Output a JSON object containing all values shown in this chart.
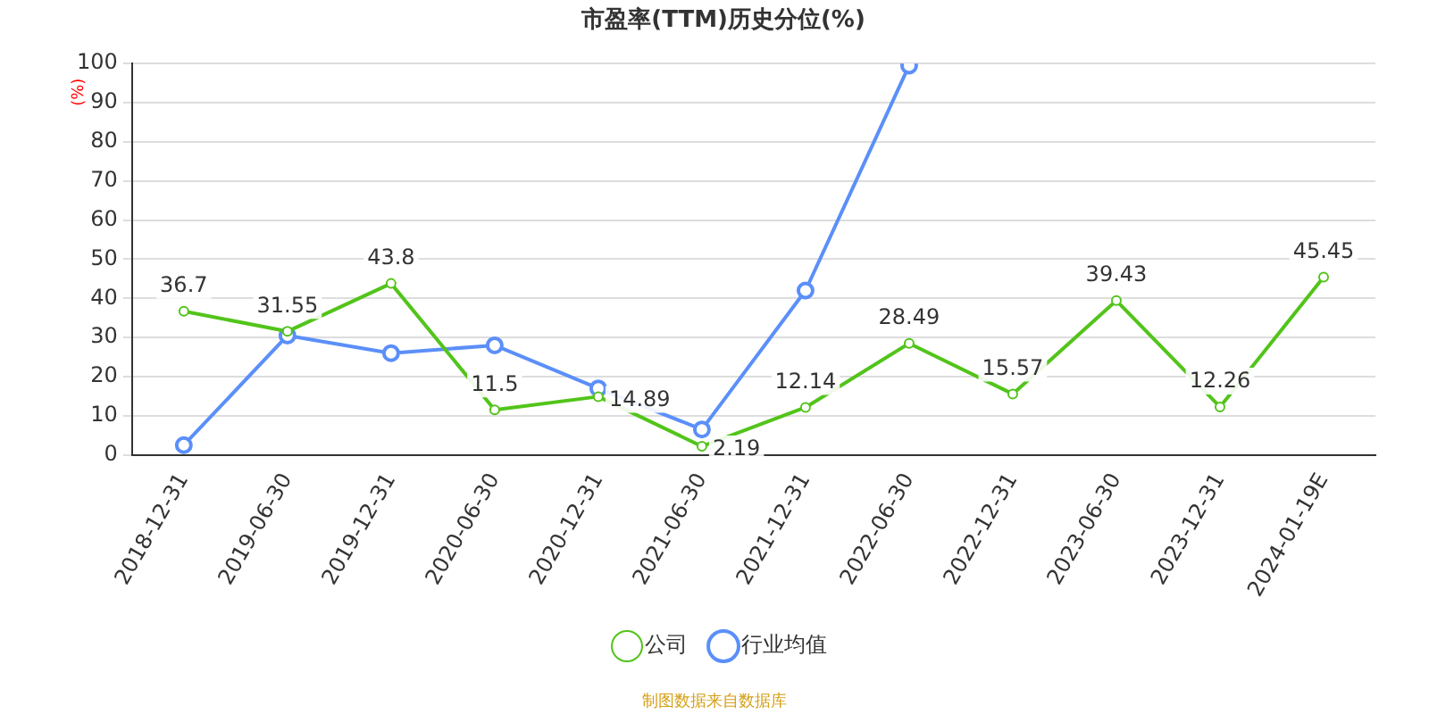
{
  "chart_data": {
    "type": "line",
    "title": "市盈率(TTM)历史分位(%)",
    "ylabel": "(%)",
    "categories": [
      "2018-12-31",
      "2019-06-30",
      "2019-12-31",
      "2020-06-30",
      "2020-12-31",
      "2021-06-30",
      "2021-12-31",
      "2022-06-30",
      "2022-12-31",
      "2023-06-30",
      "2023-12-31",
      "2024-01-19E"
    ],
    "series": [
      {
        "name": "公司",
        "color": "#52c41a",
        "values": [
          36.7,
          31.55,
          43.8,
          11.5,
          14.89,
          2.19,
          12.14,
          28.49,
          15.57,
          39.43,
          12.26,
          45.45
        ],
        "value_labels": [
          "36.7",
          "31.55",
          "43.8",
          "11.5",
          "14.89",
          "2.19",
          "12.14",
          "28.49",
          "15.57",
          "39.43",
          "12.26",
          "45.45"
        ]
      },
      {
        "name": "行业均值",
        "color": "#5b8ff9",
        "values": [
          2.5,
          30.5,
          26,
          28,
          17,
          6.5,
          42,
          99.5,
          null,
          null,
          null,
          null
        ]
      }
    ],
    "ylim": [
      0,
      100
    ],
    "yticks": [
      0,
      10,
      20,
      30,
      40,
      50,
      60,
      70,
      80,
      90,
      100
    ],
    "grid": "y",
    "legend": "bottom",
    "marker": "circle",
    "line_style": "solid",
    "annotations": [
      "制图数据来自数据库"
    ]
  }
}
